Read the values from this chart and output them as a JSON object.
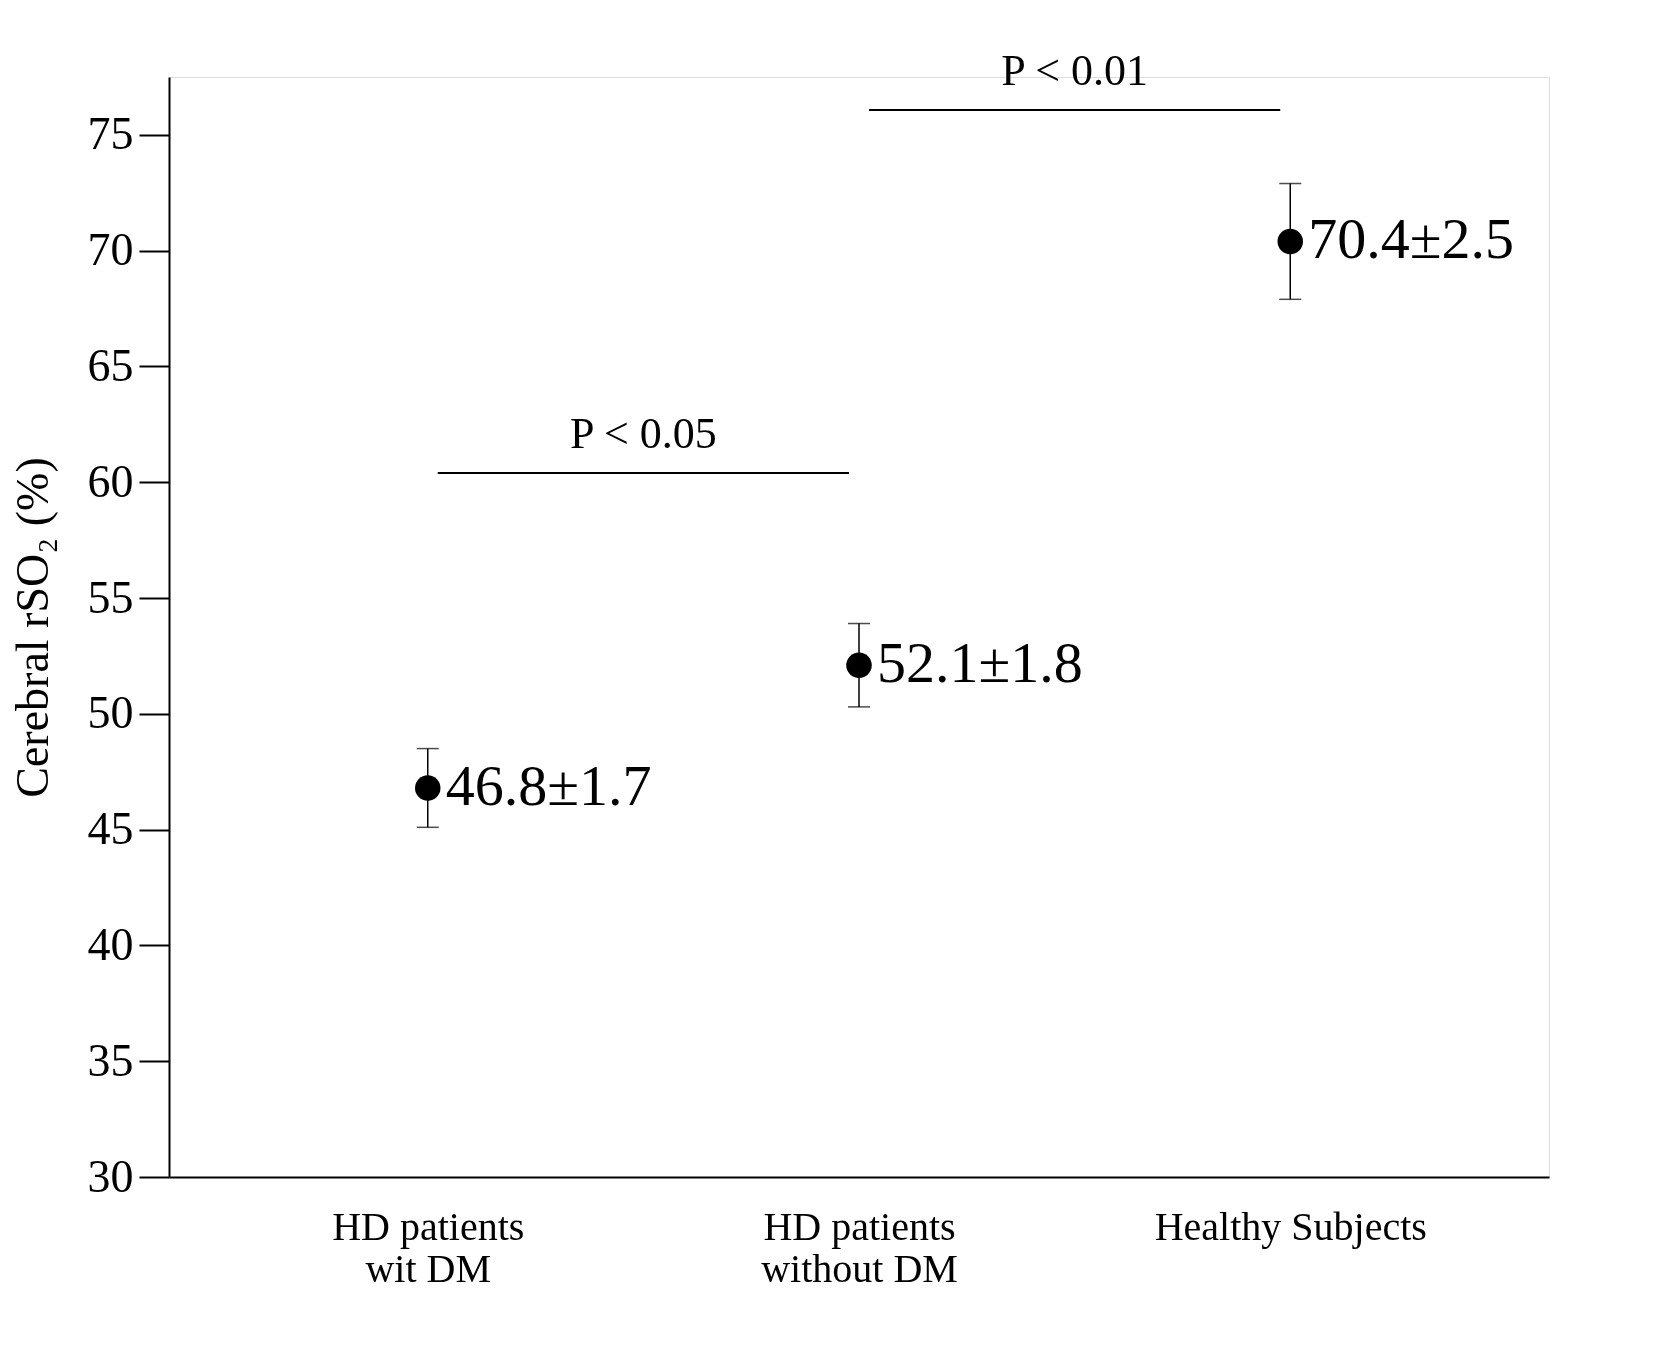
{
  "chart_data": {
    "type": "scatter",
    "ylabel": "Cerebral rSO₂ (%)",
    "categories": [
      "HD patients\nwit DM",
      "HD patients\nwithout DM",
      "Healthy Subjects"
    ],
    "values": [
      46.8,
      52.1,
      70.4
    ],
    "errors": [
      1.7,
      1.8,
      2.5
    ],
    "value_labels": [
      "46.8±1.7",
      "52.1±1.8",
      "70.4±2.5"
    ],
    "color": "#000000",
    "marker": "circle",
    "ylim": [
      30,
      77.5
    ],
    "yticks": [
      30,
      35,
      40,
      45,
      50,
      55,
      60,
      65,
      70,
      75
    ],
    "grid": false,
    "annotations": [
      "P < 0.05",
      "P < 0.01"
    ]
  }
}
